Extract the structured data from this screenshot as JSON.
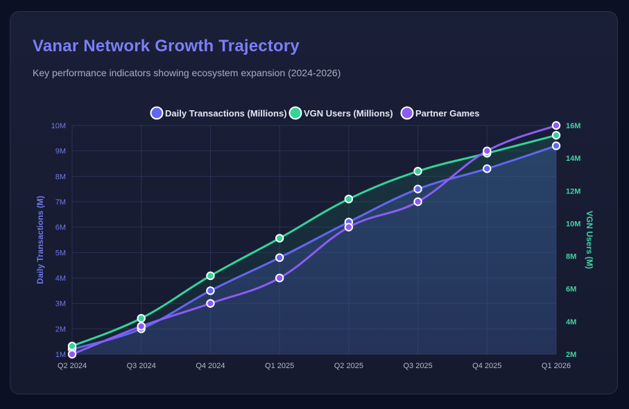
{
  "chart_data": {
    "type": "line",
    "title": "Vanar Network Growth Trajectory",
    "subtitle": "Key performance indicators showing ecosystem expansion (2024-2026)",
    "categories": [
      "Q2 2024",
      "Q3 2024",
      "Q4 2024",
      "Q1 2025",
      "Q2 2025",
      "Q3 2025",
      "Q4 2025",
      "Q1 2026"
    ],
    "series": [
      {
        "name": "Daily Transactions (Millions)",
        "axis": "left",
        "color": "#6366f1",
        "fill": true,
        "values": [
          1.2,
          2.0,
          3.5,
          4.8,
          6.2,
          7.5,
          8.3,
          9.2
        ]
      },
      {
        "name": "VGN Users (Millions)",
        "axis": "right",
        "color": "#34d399",
        "fill": true,
        "values": [
          2.5,
          4.2,
          6.8,
          9.1,
          11.5,
          13.2,
          14.3,
          15.4
        ]
      },
      {
        "name": "Partner Games",
        "axis": "left",
        "color": "#8b5cf6",
        "fill": false,
        "values": [
          1,
          2.1,
          3,
          4,
          6,
          7,
          9,
          10
        ]
      }
    ],
    "ylabel_left": "Daily Transactions (M)",
    "ylabel_right": "VGN Users (M)",
    "ylim_left": [
      1,
      10
    ],
    "ylim_right": [
      2,
      16
    ],
    "yticks_left": [
      "1M",
      "2M",
      "3M",
      "4M",
      "5M",
      "6M",
      "7M",
      "8M",
      "9M",
      "10M"
    ],
    "yticks_right": [
      "2M",
      "4M",
      "6M",
      "8M",
      "10M",
      "12M",
      "14M",
      "16M"
    ],
    "grid": true,
    "legend_position": "top-center"
  }
}
